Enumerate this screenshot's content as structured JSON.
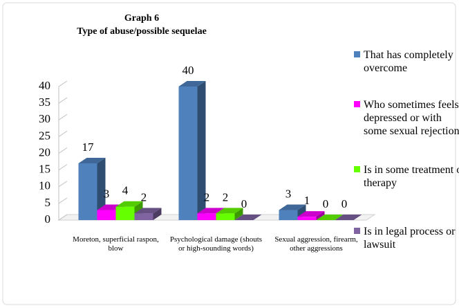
{
  "chart_data": {
    "type": "bar3d",
    "title": "Graph 6",
    "subtitle": "Type of abuse/possible sequelae",
    "categories": [
      "Moreton, superficial raspon, blow",
      "Psychological damage (shouts or high-sounding words)",
      "Sexual aggression, firearm, other aggressions"
    ],
    "series": [
      {
        "name": "That has completely overcome",
        "color": "#4f81bd",
        "values": [
          17,
          40,
          3
        ]
      },
      {
        "name": "Who sometimes feels depressed or with some sexual rejection",
        "color": "#ff00ff",
        "values": [
          3,
          2,
          1
        ]
      },
      {
        "name": "Is in some treatment or therapy",
        "color": "#66ff00",
        "values": [
          4,
          2,
          0
        ]
      },
      {
        "name": "Is in legal process or lawsuit",
        "color": "#8064a2",
        "values": [
          2,
          0,
          0
        ]
      }
    ],
    "ylim": [
      0,
      40
    ],
    "yticks": [
      0,
      5,
      10,
      15,
      20,
      25,
      30,
      35,
      40
    ],
    "legend": "right"
  }
}
